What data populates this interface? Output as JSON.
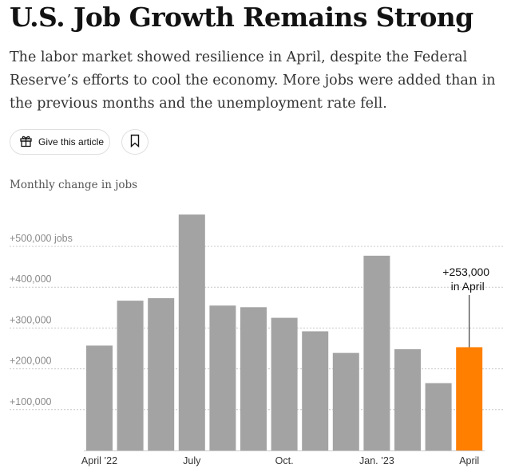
{
  "article": {
    "headline": "U.S. Job Growth Remains Strong",
    "summary": "The labor market showed resilience in April, despite the Federal Reserve’s efforts to cool the economy. More jobs were added than in the previous months and the unemployment rate fell.",
    "gift_label": "Give this article",
    "icons": {
      "gift": "gift-icon",
      "save": "bookmark-icon"
    }
  },
  "colors": {
    "bar": "#a3a3a3",
    "highlight": "#ff7f00",
    "grid": "#c8c8c8",
    "text": "#121212"
  },
  "chart_data": {
    "type": "bar",
    "title": "Monthly change in jobs",
    "xlabel": "",
    "ylabel": "",
    "ylim": [
      0,
      580000
    ],
    "yticks": [
      {
        "value": 100000,
        "label": "+100,000"
      },
      {
        "value": 200000,
        "label": "+200,000"
      },
      {
        "value": 300000,
        "label": "+300,000"
      },
      {
        "value": 400000,
        "label": "+400,000"
      },
      {
        "value": 500000,
        "label": "+500,000 jobs"
      }
    ],
    "grid": true,
    "categories": [
      "April 2022",
      "May 2022",
      "June 2022",
      "July 2022",
      "Aug. 2022",
      "Sept. 2022",
      "Oct. 2022",
      "Nov. 2022",
      "Dec. 2022",
      "Jan. 2023",
      "Feb. 2023",
      "March 2023",
      "April 2023"
    ],
    "values": [
      257000,
      367000,
      373000,
      578000,
      355000,
      351000,
      325000,
      292000,
      239000,
      477000,
      248000,
      165000,
      253000
    ],
    "highlight_index": 12,
    "x_tick_labels": [
      {
        "index": 0,
        "label": "April ’22"
      },
      {
        "index": 3,
        "label": "July"
      },
      {
        "index": 6,
        "label": "Oct."
      },
      {
        "index": 9,
        "label": "Jan. ’23"
      },
      {
        "index": 12,
        "label": "April"
      }
    ],
    "annotation": {
      "index": 12,
      "line1": "+253,000",
      "line2": "in April"
    }
  }
}
